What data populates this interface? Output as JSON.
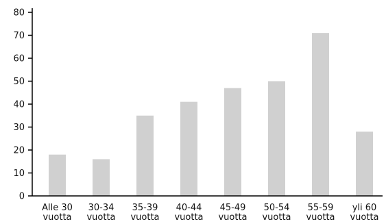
{
  "chart_data": {
    "type": "bar",
    "title": "",
    "xlabel": "",
    "ylabel": "",
    "categories": [
      [
        "Alle 30",
        "vuotta"
      ],
      [
        "30-34",
        "vuotta"
      ],
      [
        "35-39",
        "vuotta"
      ],
      [
        "40-44",
        "vuotta"
      ],
      [
        "45-49",
        "vuotta"
      ],
      [
        "50-54",
        "vuotta"
      ],
      [
        "55-59",
        "vuotta"
      ],
      [
        "yli 60",
        "vuotta"
      ]
    ],
    "values": [
      18,
      16,
      35,
      41,
      47,
      50,
      71,
      28
    ],
    "ylim": [
      0,
      80
    ],
    "yticks": [
      0,
      10,
      20,
      30,
      40,
      50,
      60,
      70,
      80
    ],
    "grid": false,
    "legend": "none",
    "colors": {
      "bar": "#d0d0d0",
      "axis": "#000000",
      "text": "#111111"
    }
  }
}
